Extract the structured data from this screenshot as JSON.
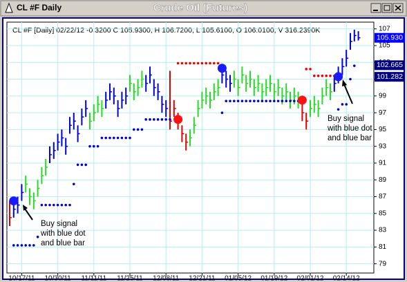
{
  "window": {
    "title": "CL #F Daily"
  },
  "chart_data": {
    "type": "ohlc",
    "title": "Crude Oil (Futures)",
    "header": "CL #F [Daily] 02/22/12 -0.3200 C 105.9300, H 106.7200, L 105.6100, O 106.0100, V 316.2390K",
    "categories": [
      null,
      null,
      null,
      "10/17/11",
      null,
      null,
      null,
      null,
      null,
      null,
      null,
      null,
      "10/30/11",
      null,
      null,
      null,
      null,
      null,
      null,
      null,
      null,
      "11/11/11",
      null,
      null,
      null,
      null,
      null,
      null,
      null,
      null,
      "11/25/11",
      null,
      null,
      null,
      null,
      null,
      null,
      null,
      null,
      "12/08/11",
      null,
      null,
      null,
      null,
      null,
      null,
      null,
      null,
      "12/21/11",
      null,
      null,
      null,
      null,
      null,
      null,
      null,
      null,
      "01/05/12",
      null,
      null,
      null,
      null,
      null,
      null,
      null,
      null,
      "01/19/12",
      null,
      null,
      null,
      null,
      null,
      null,
      null,
      null,
      "02/01/12",
      null,
      null,
      null,
      null,
      null,
      null,
      null,
      null,
      "02/14/12",
      null,
      null,
      null
    ],
    "high": [
      86.5,
      86.5,
      87,
      88.5,
      89.5,
      88,
      87.5,
      89,
      90.5,
      91.5,
      93,
      93.5,
      94.5,
      95,
      94,
      96.5,
      97,
      95.5,
      97.5,
      98.5,
      97,
      98,
      99,
      98.5,
      99.5,
      100.5,
      100,
      98.5,
      99.5,
      100,
      101.5,
      100.5,
      101,
      102,
      101.5,
      102.5,
      101,
      100.5,
      99,
      98.5,
      102,
      98.5,
      97,
      95.5,
      94.5,
      95,
      96.5,
      98.5,
      99.5,
      100,
      99.5,
      100.5,
      101,
      102.5,
      102,
      101.5,
      102,
      101,
      102.5,
      101.5,
      102,
      101,
      101.5,
      100.5,
      101,
      101.5,
      100.5,
      101,
      100,
      100.5,
      99.5,
      100,
      99.5,
      99,
      97,
      98.5,
      99,
      98.5,
      100,
      101,
      100.5,
      101.5,
      102.5,
      103.5,
      104.5,
      106.5,
      106.9,
      106.72
    ],
    "low": [
      83.5,
      84.5,
      85,
      86.5,
      87.5,
      86,
      85.5,
      87,
      88.5,
      89.5,
      91,
      91.5,
      92.5,
      93,
      92,
      94.5,
      95,
      93.5,
      95.5,
      96.5,
      95,
      96,
      97,
      96.5,
      97.5,
      98.5,
      98,
      96.5,
      97.5,
      98,
      99.5,
      98.5,
      99,
      100,
      99.5,
      100.5,
      99,
      98.5,
      97,
      96.5,
      95,
      96.5,
      95,
      93.5,
      92.5,
      93,
      94.5,
      96.5,
      97.5,
      98,
      97.5,
      98.5,
      99,
      100.5,
      100,
      99.5,
      100,
      99,
      100.5,
      99.5,
      100,
      99,
      99.5,
      98.5,
      99,
      99.5,
      98.5,
      99,
      98,
      98.5,
      97.5,
      98,
      97.5,
      96,
      95,
      96.5,
      97,
      96.5,
      98,
      99,
      98.5,
      99.5,
      100.5,
      101.5,
      102.5,
      104.5,
      105.5,
      105.61
    ],
    "close": [
      84.5,
      85.5,
      86,
      87.5,
      88.5,
      87,
      86.5,
      88,
      89.5,
      90.5,
      92,
      92.5,
      93.5,
      94,
      93,
      95.5,
      96,
      94.5,
      96.5,
      97.5,
      96,
      97,
      98,
      97.5,
      98.5,
      99.5,
      99,
      97.5,
      98.5,
      99,
      100.5,
      99.5,
      100,
      101,
      100.5,
      101.5,
      100,
      99.5,
      98,
      97.5,
      96,
      97.5,
      96,
      94.5,
      93.5,
      94,
      95.5,
      97.5,
      98.5,
      99,
      98.5,
      99.5,
      100,
      101.5,
      101,
      100.5,
      101,
      100,
      101.5,
      100.5,
      101,
      100,
      100.5,
      99.5,
      100,
      100.5,
      99.5,
      100,
      99,
      99.5,
      98.5,
      99,
      98.5,
      97,
      96,
      97.5,
      98,
      97.5,
      99,
      100,
      99.5,
      100.5,
      101.5,
      102.5,
      103.5,
      105.5,
      106.2,
      105.93
    ],
    "bar_colors": [
      "#dd0000",
      "#0000dd",
      "#0000dd",
      "#0000dd",
      "#22dd22",
      "#22dd22",
      "#22dd22",
      "#22dd22",
      "#22dd22",
      "#22dd22",
      "#0000dd",
      "#0000dd",
      "#0000dd",
      "#0000dd",
      "#0000dd",
      "#0000dd",
      "#0000dd",
      "#0000dd",
      "#0000dd",
      "#0000dd",
      "#22dd22",
      "#22dd22",
      "#22dd22",
      "#22dd22",
      "#0000dd",
      "#0000dd",
      "#0000dd",
      "#0000dd",
      "#0000dd",
      "#0000dd",
      "#22dd22",
      "#22dd22",
      "#22dd22",
      "#22dd22",
      "#0000dd",
      "#0000dd",
      "#0000dd",
      "#0000dd",
      "#0000dd",
      "#0000dd",
      "#dd0000",
      "#dd0000",
      "#dd0000",
      "#dd0000",
      "#dd0000",
      "#22dd22",
      "#22dd22",
      "#22dd22",
      "#22dd22",
      "#22dd22",
      "#22dd22",
      "#22dd22",
      "#22dd22",
      "#0000dd",
      "#0000dd",
      "#0000dd",
      "#22dd22",
      "#22dd22",
      "#22dd22",
      "#22dd22",
      "#22dd22",
      "#22dd22",
      "#22dd22",
      "#22dd22",
      "#22dd22",
      "#22dd22",
      "#22dd22",
      "#22dd22",
      "#22dd22",
      "#22dd22",
      "#22dd22",
      "#22dd22",
      "#22dd22",
      "#dd0000",
      "#dd0000",
      "#22dd22",
      "#22dd22",
      "#22dd22",
      "#22dd22",
      "#22dd22",
      "#22dd22",
      "#0000dd",
      "#0000dd",
      "#0000dd",
      "#0000dd",
      "#0000dd",
      "#0000dd",
      "#0000dd"
    ],
    "series": [
      {
        "color": "#0000cc",
        "values": [
          null,
          81.2,
          81.2,
          81.2,
          81.2,
          81.2,
          81.2,
          82.2,
          86,
          86,
          86,
          86,
          86,
          86,
          86,
          86,
          88.5,
          90.8,
          90.8,
          90.8,
          93,
          93,
          93,
          94,
          94,
          94,
          94,
          94,
          94,
          94,
          94,
          95,
          95,
          95,
          96.2,
          96.2,
          96.2,
          96.2,
          96.2,
          96.2,
          96.2,
          null,
          null,
          null,
          null,
          null,
          null,
          null,
          null,
          null,
          null,
          null,
          null,
          97,
          98.4,
          98.4,
          98.4,
          98.4,
          98.4,
          98.4,
          98.4,
          98.4,
          98.4,
          98.4,
          98.4,
          98.4,
          98.4,
          98.4,
          98.4,
          98.4,
          98.4,
          98.4,
          98.4,
          null,
          null,
          null,
          null,
          null,
          null,
          null,
          null,
          null,
          97.4,
          98,
          98,
          101,
          102.6,
          null
        ]
      },
      {
        "color": "#ee0000",
        "values": [
          null,
          null,
          null,
          null,
          null,
          null,
          null,
          null,
          null,
          null,
          null,
          null,
          null,
          null,
          null,
          null,
          null,
          null,
          null,
          null,
          null,
          null,
          null,
          null,
          null,
          null,
          null,
          null,
          null,
          null,
          null,
          null,
          null,
          null,
          null,
          null,
          null,
          null,
          null,
          null,
          null,
          null,
          102.9,
          102.9,
          102.9,
          102.9,
          102.9,
          102.9,
          102.9,
          102.9,
          102.9,
          102.9,
          102.9,
          null,
          null,
          null,
          null,
          null,
          null,
          null,
          null,
          null,
          null,
          null,
          null,
          null,
          null,
          null,
          null,
          null,
          null,
          null,
          null,
          null,
          102.2,
          102.2,
          101.4,
          101.4,
          101.4,
          101.4,
          101.4,
          101.4,
          null,
          null,
          null,
          null,
          null,
          null
        ]
      },
      {
        "color": "#1a1aff",
        "values": [
          null,
          86.5,
          null,
          null,
          null,
          null,
          null,
          null,
          null,
          null,
          null,
          null,
          null,
          null,
          null,
          null,
          null,
          null,
          null,
          null,
          null,
          null,
          null,
          null,
          null,
          null,
          null,
          null,
          null,
          null,
          null,
          null,
          null,
          null,
          null,
          null,
          null,
          null,
          null,
          null,
          null,
          null,
          null,
          null,
          null,
          null,
          null,
          null,
          null,
          null,
          null,
          null,
          null,
          102.3,
          null,
          null,
          null,
          null,
          null,
          null,
          null,
          null,
          null,
          null,
          null,
          null,
          null,
          null,
          null,
          null,
          null,
          null,
          null,
          null,
          null,
          null,
          null,
          null,
          null,
          null,
          null,
          null,
          101.3,
          null,
          null,
          null,
          null,
          null
        ]
      },
      {
        "color": "#ff1111",
        "values": [
          null,
          null,
          null,
          null,
          null,
          null,
          null,
          null,
          null,
          null,
          null,
          null,
          null,
          null,
          null,
          null,
          null,
          null,
          null,
          null,
          null,
          null,
          null,
          null,
          null,
          null,
          null,
          null,
          null,
          null,
          null,
          null,
          null,
          null,
          null,
          null,
          null,
          null,
          null,
          null,
          null,
          null,
          96.2,
          null,
          null,
          null,
          null,
          null,
          null,
          null,
          null,
          null,
          null,
          null,
          null,
          null,
          null,
          null,
          null,
          null,
          null,
          null,
          null,
          null,
          null,
          null,
          null,
          null,
          null,
          null,
          null,
          null,
          null,
          98.5,
          null,
          null,
          null,
          null,
          null,
          null,
          null,
          null,
          null,
          null,
          null,
          null,
          null,
          null
        ]
      }
    ],
    "price_labels": [
      {
        "value": 105.93,
        "label": "105.930",
        "color": "#0000ff"
      },
      {
        "value": 102.665,
        "label": "102.665",
        "color": "#000080"
      },
      {
        "value": 101.282,
        "label": "101.282",
        "color": "#000080"
      }
    ],
    "annotations": [
      {
        "lines": [
          "Buy signal",
          "with blue dot",
          "and blue bar"
        ]
      },
      {
        "lines": [
          "Buy signal",
          "with blue dot",
          "and blue bar"
        ]
      }
    ],
    "ylim": [
      77.9,
      107.8
    ],
    "yticks": [
      79,
      81,
      83,
      85,
      87,
      89,
      91,
      93,
      95,
      97,
      99,
      101,
      103,
      105,
      107
    ],
    "grid": true
  }
}
